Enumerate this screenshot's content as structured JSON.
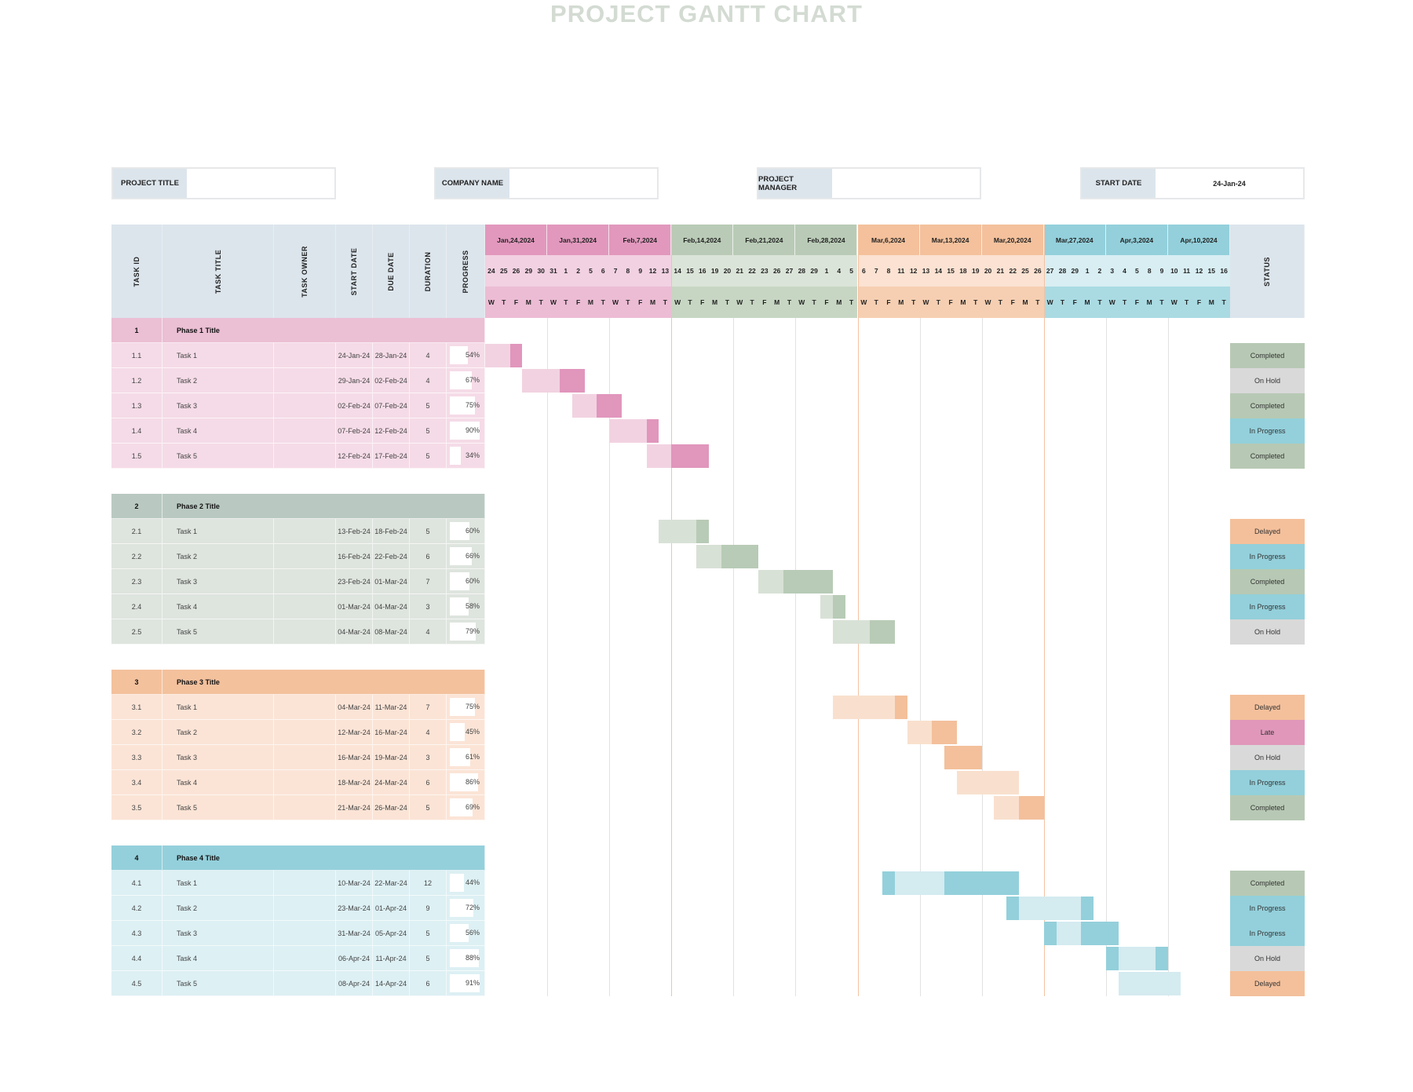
{
  "title": "PROJECT GANTT CHART",
  "info": [
    {
      "label": "PROJECT TITLE",
      "value": ""
    },
    {
      "label": "COMPANY NAME",
      "value": ""
    },
    {
      "label": "PROJECT MANAGER",
      "value": ""
    },
    {
      "label": "START DATE",
      "value": "24-Jan-24"
    }
  ],
  "columns": [
    "TASK ID",
    "TASK TITLE",
    "TASK OWNER",
    "START DATE",
    "DUE DATE",
    "DURATION",
    "PROGRESS"
  ],
  "status_header": "STATUS",
  "timeline": {
    "start_month": "Jan",
    "weeks": [
      {
        "label": "Jan,24,2024",
        "days": [
          "24",
          "25",
          "26",
          "29",
          "30"
        ],
        "group": 0
      },
      {
        "label": "Jan,31,2024",
        "days": [
          "31",
          "1",
          "2",
          "5",
          "6"
        ],
        "group": 0
      },
      {
        "label": "Feb,7,2024",
        "days": [
          "7",
          "8",
          "9",
          "12",
          "13"
        ],
        "group": 0
      },
      {
        "label": "Feb,14,2024",
        "days": [
          "14",
          "15",
          "16",
          "19",
          "20"
        ],
        "group": 1
      },
      {
        "label": "Feb,21,2024",
        "days": [
          "21",
          "22",
          "23",
          "26",
          "27"
        ],
        "group": 1
      },
      {
        "label": "Feb,28,2024",
        "days": [
          "28",
          "29",
          "1",
          "4",
          "5"
        ],
        "group": 1
      },
      {
        "label": "Mar,6,2024",
        "days": [
          "6",
          "7",
          "8",
          "11",
          "12"
        ],
        "group": 2
      },
      {
        "label": "Mar,13,2024",
        "days": [
          "13",
          "14",
          "15",
          "18",
          "19"
        ],
        "group": 2
      },
      {
        "label": "Mar,20,2024",
        "days": [
          "20",
          "21",
          "22",
          "25",
          "26"
        ],
        "group": 2
      },
      {
        "label": "Mar,27,2024",
        "days": [
          "27",
          "28",
          "29",
          "1",
          "2"
        ],
        "group": 3
      },
      {
        "label": "Apr,3,2024",
        "days": [
          "3",
          "4",
          "5",
          "8",
          "9"
        ],
        "group": 3
      },
      {
        "label": "Apr,10,2024",
        "days": [
          "10",
          "11",
          "12",
          "15",
          "16"
        ],
        "group": 3
      }
    ],
    "weekdays": [
      "W",
      "T",
      "F",
      "M",
      "T"
    ]
  },
  "colors": {
    "header": "#dce5ec",
    "status": {
      "Completed": "#b7c9b4",
      "On Hold": "#d9d9d9",
      "In Progress": "#93d0db",
      "Delayed": "#f4c09b",
      "Late": "#e097ba"
    }
  },
  "phases": [
    {
      "id": "1",
      "title": "Phase 1 Title",
      "colors": {
        "phase": "#ebbfd4",
        "row": "#f5dbe7",
        "week": "#e298bd",
        "day": "#f2d1e2",
        "dow": "#ecbcd4",
        "dark": "#e196bc",
        "light": "#f2d2e1"
      },
      "tasks": [
        {
          "id": "1.1",
          "title": "Task 1",
          "owner": "",
          "start": "24-Jan-24",
          "due": "28-Jan-24",
          "duration": "4",
          "progress": "54%",
          "progress_value": 0.54,
          "status": "Completed",
          "bar_start": "Jan 24",
          "bar": [
            [
              "light",
              2
            ],
            [
              "dark",
              1
            ]
          ]
        },
        {
          "id": "1.2",
          "title": "Task 2",
          "owner": "",
          "start": "29-Jan-24",
          "due": "02-Feb-24",
          "duration": "4",
          "progress": "67%",
          "progress_value": 0.67,
          "status": "On Hold",
          "bar_start": "Jan 29",
          "bar": [
            [
              "light",
              3
            ],
            [
              "dark",
              2
            ]
          ]
        },
        {
          "id": "1.3",
          "title": "Task 3",
          "owner": "",
          "start": "02-Feb-24",
          "due": "07-Feb-24",
          "duration": "5",
          "progress": "75%",
          "progress_value": 0.75,
          "status": "Completed",
          "bar_start": "Feb 2",
          "bar": [
            [
              "light",
              2
            ],
            [
              "dark",
              2
            ]
          ]
        },
        {
          "id": "1.4",
          "title": "Task 4",
          "owner": "",
          "start": "07-Feb-24",
          "due": "12-Feb-24",
          "duration": "5",
          "progress": "90%",
          "progress_value": 0.9,
          "status": "In Progress",
          "bar_start": "Feb 7",
          "bar": [
            [
              "light",
              3
            ],
            [
              "dark",
              1
            ]
          ]
        },
        {
          "id": "1.5",
          "title": "Task 5",
          "owner": "",
          "start": "12-Feb-24",
          "due": "17-Feb-24",
          "duration": "5",
          "progress": "34%",
          "progress_value": 0.34,
          "status": "Completed",
          "bar_start": "Feb 12",
          "bar": [
            [
              "light",
              2
            ],
            [
              "dark",
              3
            ]
          ]
        }
      ]
    },
    {
      "id": "2",
      "title": "Phase 2 Title",
      "colors": {
        "phase": "#b9c9c2",
        "row": "#dee4de",
        "week": "#b9cbb6",
        "day": "#dbe4d8",
        "dow": "#c7d6c3",
        "dark": "#b8cbb6",
        "light": "#d8e1d6"
      },
      "tasks": [
        {
          "id": "2.1",
          "title": "Task 1",
          "owner": "",
          "start": "13-Feb-24",
          "due": "18-Feb-24",
          "duration": "5",
          "progress": "60%",
          "progress_value": 0.6,
          "status": "Delayed",
          "bar_start": "Feb 13",
          "bar": [
            [
              "light",
              3
            ],
            [
              "dark",
              1
            ]
          ]
        },
        {
          "id": "2.2",
          "title": "Task 2",
          "owner": "",
          "start": "16-Feb-24",
          "due": "22-Feb-24",
          "duration": "6",
          "progress": "66%",
          "progress_value": 0.66,
          "status": "In Progress",
          "bar_start": "Feb 16",
          "bar": [
            [
              "light",
              2
            ],
            [
              "dark",
              3
            ]
          ]
        },
        {
          "id": "2.3",
          "title": "Task 3",
          "owner": "",
          "start": "23-Feb-24",
          "due": "01-Mar-24",
          "duration": "7",
          "progress": "60%",
          "progress_value": 0.6,
          "status": "Completed",
          "bar_start": "Feb 23",
          "bar": [
            [
              "light",
              2
            ],
            [
              "dark",
              4
            ]
          ]
        },
        {
          "id": "2.4",
          "title": "Task 4",
          "owner": "",
          "start": "01-Mar-24",
          "due": "04-Mar-24",
          "duration": "3",
          "progress": "58%",
          "progress_value": 0.58,
          "status": "In Progress",
          "bar_start": "Mar 1",
          "bar": [
            [
              "light",
              1
            ],
            [
              "dark",
              1
            ]
          ]
        },
        {
          "id": "2.5",
          "title": "Task 5",
          "owner": "",
          "start": "04-Mar-24",
          "due": "08-Mar-24",
          "duration": "4",
          "progress": "79%",
          "progress_value": 0.79,
          "status": "On Hold",
          "bar_start": "Mar 4",
          "bar": [
            [
              "light",
              3
            ],
            [
              "dark",
              2
            ]
          ]
        }
      ]
    },
    {
      "id": "3",
      "title": "Phase 3 Title",
      "colors": {
        "phase": "#f4c19d",
        "row": "#fbe4d6",
        "week": "#f4c19c",
        "day": "#fbe2d2",
        "dow": "#f6cfb2",
        "dark": "#f3c09b",
        "light": "#f9e0ce"
      },
      "tasks": [
        {
          "id": "3.1",
          "title": "Task 1",
          "owner": "",
          "start": "04-Mar-24",
          "due": "11-Mar-24",
          "duration": "7",
          "progress": "75%",
          "progress_value": 0.75,
          "status": "Delayed",
          "bar_start": "Mar 4",
          "bar": [
            [
              "light",
              5
            ],
            [
              "dark",
              1
            ]
          ]
        },
        {
          "id": "3.2",
          "title": "Task 2",
          "owner": "",
          "start": "12-Mar-24",
          "due": "16-Mar-24",
          "duration": "4",
          "progress": "45%",
          "progress_value": 0.45,
          "status": "Late",
          "bar_start": "Mar 12",
          "bar": [
            [
              "light",
              2
            ],
            [
              "dark",
              2
            ]
          ]
        },
        {
          "id": "3.3",
          "title": "Task 3",
          "owner": "",
          "start": "16-Mar-24",
          "due": "19-Mar-24",
          "duration": "3",
          "progress": "61%",
          "progress_value": 0.61,
          "status": "On Hold",
          "bar_start": "Mar 15",
          "bar": [
            [
              "dark",
              3
            ]
          ]
        },
        {
          "id": "3.4",
          "title": "Task 4",
          "owner": "",
          "start": "18-Mar-24",
          "due": "24-Mar-24",
          "duration": "6",
          "progress": "86%",
          "progress_value": 0.86,
          "status": "In Progress",
          "bar_start": "Mar 18",
          "bar": [
            [
              "light",
              5
            ]
          ]
        },
        {
          "id": "3.5",
          "title": "Task 5",
          "owner": "",
          "start": "21-Mar-24",
          "due": "26-Mar-24",
          "duration": "5",
          "progress": "69%",
          "progress_value": 0.69,
          "status": "Completed",
          "bar_start": "Mar 21",
          "bar": [
            [
              "light",
              2
            ],
            [
              "dark",
              2
            ]
          ]
        }
      ]
    },
    {
      "id": "4",
      "title": "Phase 4 Title",
      "colors": {
        "phase": "#94d0db",
        "row": "#ddf0f4",
        "week": "#93d0db",
        "day": "#d8eef3",
        "dow": "#aadbe3",
        "dark": "#93d0db",
        "light": "#d4ebf0"
      },
      "tasks": [
        {
          "id": "4.1",
          "title": "Task 1",
          "owner": "",
          "start": "10-Mar-24",
          "due": "22-Mar-24",
          "duration": "12",
          "progress": "44%",
          "progress_value": 0.44,
          "status": "Completed",
          "bar_start": "Mar 8",
          "bar": [
            [
              "dark",
              1
            ],
            [
              "light",
              4
            ],
            [
              "dark",
              6
            ]
          ]
        },
        {
          "id": "4.2",
          "title": "Task 2",
          "owner": "",
          "start": "23-Mar-24",
          "due": "01-Apr-24",
          "duration": "9",
          "progress": "72%",
          "progress_value": 0.72,
          "status": "In Progress",
          "bar_start": "Mar 22",
          "bar": [
            [
              "dark",
              1
            ],
            [
              "light",
              5
            ],
            [
              "dark",
              1
            ]
          ]
        },
        {
          "id": "4.3",
          "title": "Task 3",
          "owner": "",
          "start": "31-Mar-24",
          "due": "05-Apr-24",
          "duration": "5",
          "progress": "56%",
          "progress_value": 0.56,
          "status": "In Progress",
          "bar_start": "Mar 27",
          "bar": [
            [
              "dark",
              1
            ],
            [
              "light",
              2
            ],
            [
              "dark",
              3
            ]
          ]
        },
        {
          "id": "4.4",
          "title": "Task 4",
          "owner": "",
          "start": "06-Apr-24",
          "due": "11-Apr-24",
          "duration": "5",
          "progress": "88%",
          "progress_value": 0.88,
          "status": "On Hold",
          "bar_start": "Apr 3",
          "bar": [
            [
              "dark",
              1
            ],
            [
              "light",
              3
            ],
            [
              "dark",
              1
            ]
          ]
        },
        {
          "id": "4.5",
          "title": "Task 5",
          "owner": "",
          "start": "08-Apr-24",
          "due": "14-Apr-24",
          "duration": "6",
          "progress": "91%",
          "progress_value": 0.91,
          "status": "Delayed",
          "bar_start": "Apr 4",
          "bar": [
            [
              "light",
              5
            ]
          ]
        }
      ]
    }
  ]
}
